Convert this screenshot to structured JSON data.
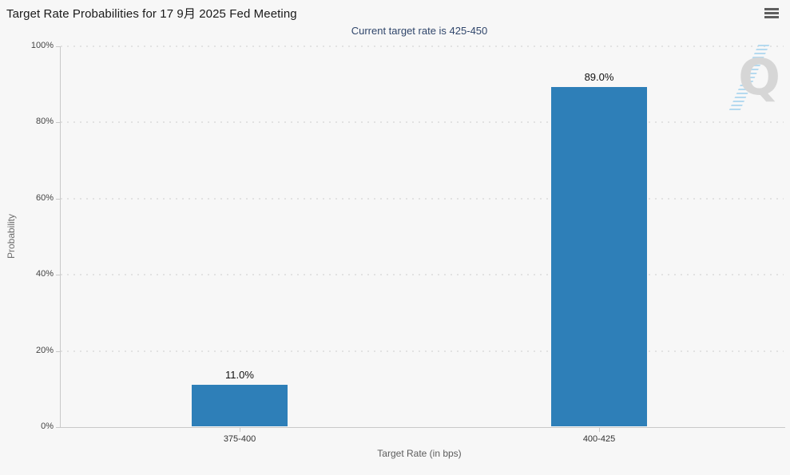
{
  "header": {
    "menu_icon": "hamburger-menu"
  },
  "chart_data": {
    "type": "bar",
    "title": "Target Rate Probabilities for 17 9月 2025 Fed Meeting",
    "subtitle": "Current target rate is 425-450",
    "categories": [
      "375-400",
      "400-425"
    ],
    "values": [
      11.0,
      89.0
    ],
    "data_labels": [
      "11.0%",
      "89.0%"
    ],
    "xlabel": "Target Rate (in bps)",
    "ylabel": "Probability",
    "ylim": [
      0,
      100
    ],
    "ytick_labels": [
      "0%",
      "20%",
      "40%",
      "60%",
      "80%",
      "100%"
    ],
    "grid": "horizontal-dotted",
    "legend": "none",
    "bar_color": "#2e7fb8",
    "subtitle_color": "#30466b",
    "watermark_letter": "Q",
    "watermark_gray": "#d6d6d6",
    "watermark_blue": "#a9d5ee"
  }
}
